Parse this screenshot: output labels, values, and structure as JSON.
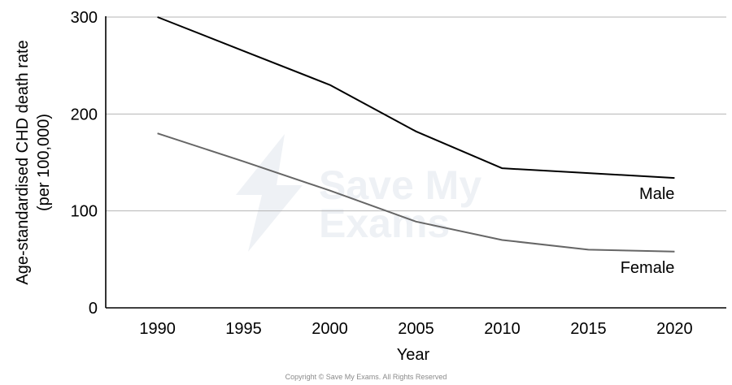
{
  "chart_data": {
    "type": "line",
    "x": [
      1990,
      1995,
      2000,
      2005,
      2010,
      2015,
      2020
    ],
    "xlabel": "Year",
    "ylabel": "Age-standardised CHD death rate (per 100,000)",
    "ylabel_lines": [
      "Age-standardised CHD death rate",
      "(per 100,000)"
    ],
    "yticks": [
      0,
      100,
      200,
      300
    ],
    "ylim": [
      0,
      300
    ],
    "xlim": [
      1987,
      2023
    ],
    "grid": "horizontal",
    "series": [
      {
        "name": "Male",
        "color": "#000000",
        "values": [
          300,
          265,
          230,
          182,
          144,
          139,
          134
        ]
      },
      {
        "name": "Female",
        "color": "#666666",
        "values": [
          180,
          151,
          121,
          89,
          70,
          60,
          58
        ]
      }
    ]
  },
  "watermark": {
    "line1": "Save My",
    "line2": "Exams"
  },
  "footer": {
    "copyright": "Copyright © Save My Exams. All Rights Reserved"
  }
}
